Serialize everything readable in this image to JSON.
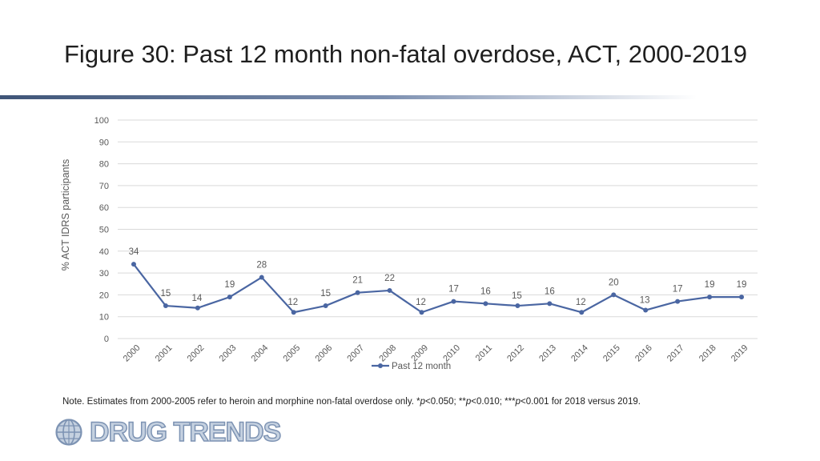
{
  "slide": {
    "title": "Figure 30: Past 12 month non-fatal overdose, ACT, 2000-2019",
    "note_prefix": "Note. Estimates from 2000-2005 refer to heroin and morphine non-fatal overdose only. *",
    "note_p1": "p",
    "note_mid1": "<0.050; **",
    "note_p2": "p",
    "note_mid2": "<0.010; ***",
    "note_p3": "p",
    "note_suffix": "<0.001 for 2018 versus 2019.",
    "logo_text": "DRUG TRENDS"
  },
  "colors": {
    "series": "#4a66a2",
    "grid": "#d9d9d9",
    "axis_text": "#595959"
  },
  "chart_data": {
    "type": "line",
    "title": "",
    "xlabel": "",
    "ylabel": "% ACT IDRS participants",
    "ylim": [
      0,
      100
    ],
    "yticks": [
      0,
      10,
      20,
      30,
      40,
      50,
      60,
      70,
      80,
      90,
      100
    ],
    "grid": true,
    "legend_position": "bottom-center",
    "categories": [
      "2000",
      "2001",
      "2002",
      "2003",
      "2004",
      "2005",
      "2006",
      "2007",
      "2008",
      "2009",
      "2010",
      "2011",
      "2012",
      "2013",
      "2014",
      "2015",
      "2016",
      "2017",
      "2018",
      "2019"
    ],
    "series": [
      {
        "name": "Past 12 month",
        "values": [
          34,
          15,
          14,
          19,
          28,
          12,
          15,
          21,
          22,
          12,
          17,
          16,
          15,
          16,
          12,
          20,
          13,
          17,
          19,
          19
        ]
      }
    ]
  }
}
